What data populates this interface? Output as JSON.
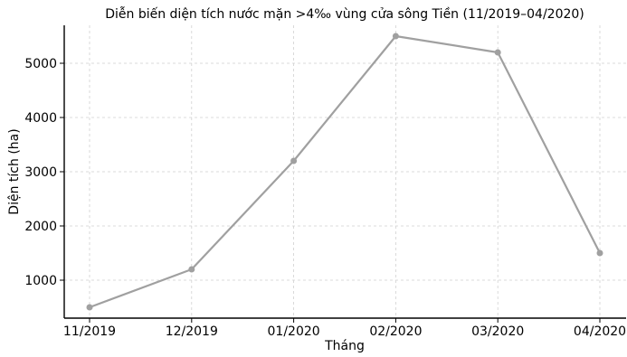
{
  "chart_data": {
    "type": "line",
    "title": "Diễn biến diện tích nước mặn >4‰ vùng cửa sông Tiền (11/2019–04/2020)",
    "xlabel": "Tháng",
    "ylabel": "Diện tích (ha)",
    "categories": [
      "11/2019",
      "12/2019",
      "01/2020",
      "02/2020",
      "03/2020",
      "04/2020"
    ],
    "series": [
      {
        "values": [
          500,
          1200,
          3200,
          5500,
          5200,
          1500
        ]
      }
    ],
    "yticks": [
      1000,
      2000,
      3000,
      4000,
      5000
    ],
    "ylim": [
      300,
      5700
    ],
    "grid": true,
    "line_color": "#a0a0a0",
    "axis_color": "#000000"
  }
}
